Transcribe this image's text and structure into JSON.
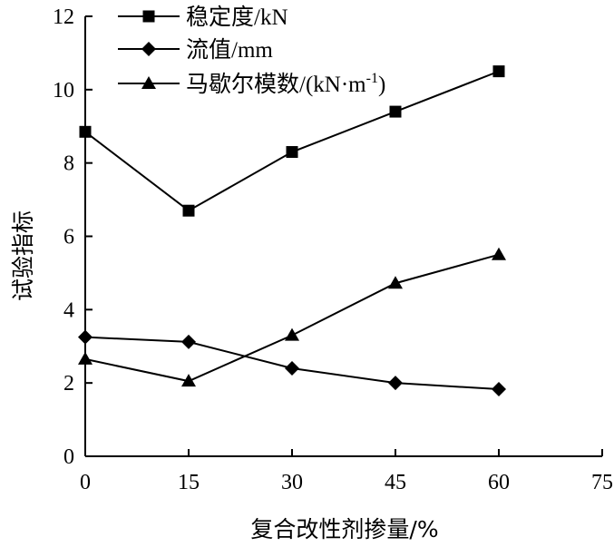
{
  "chart_data": {
    "type": "line",
    "x": [
      0,
      15,
      30,
      45,
      60
    ],
    "series": [
      {
        "name": "稳定度/kN",
        "marker": "square",
        "values": [
          8.85,
          6.7,
          8.3,
          9.4,
          10.5
        ]
      },
      {
        "name": "流值/mm",
        "marker": "diamond",
        "values": [
          3.25,
          3.12,
          2.4,
          2.0,
          1.83
        ]
      },
      {
        "name": "马歇尔模数/(kN·m",
        "name_sup": "-1",
        "name_suffix": ")",
        "marker": "triangle",
        "values": [
          2.65,
          2.05,
          3.3,
          4.72,
          5.5
        ]
      }
    ],
    "xlabel": "复合改性剂掺量/%",
    "ylabel": "试验指标",
    "xlim": [
      0,
      75
    ],
    "ylim": [
      0,
      12
    ],
    "xticks": [
      "0",
      "15",
      "30",
      "45",
      "60",
      "75"
    ],
    "yticks": [
      "0",
      "2",
      "4",
      "6",
      "8",
      "10",
      "12"
    ],
    "grid": false,
    "legend_position": "top-left",
    "color": "#000000"
  }
}
